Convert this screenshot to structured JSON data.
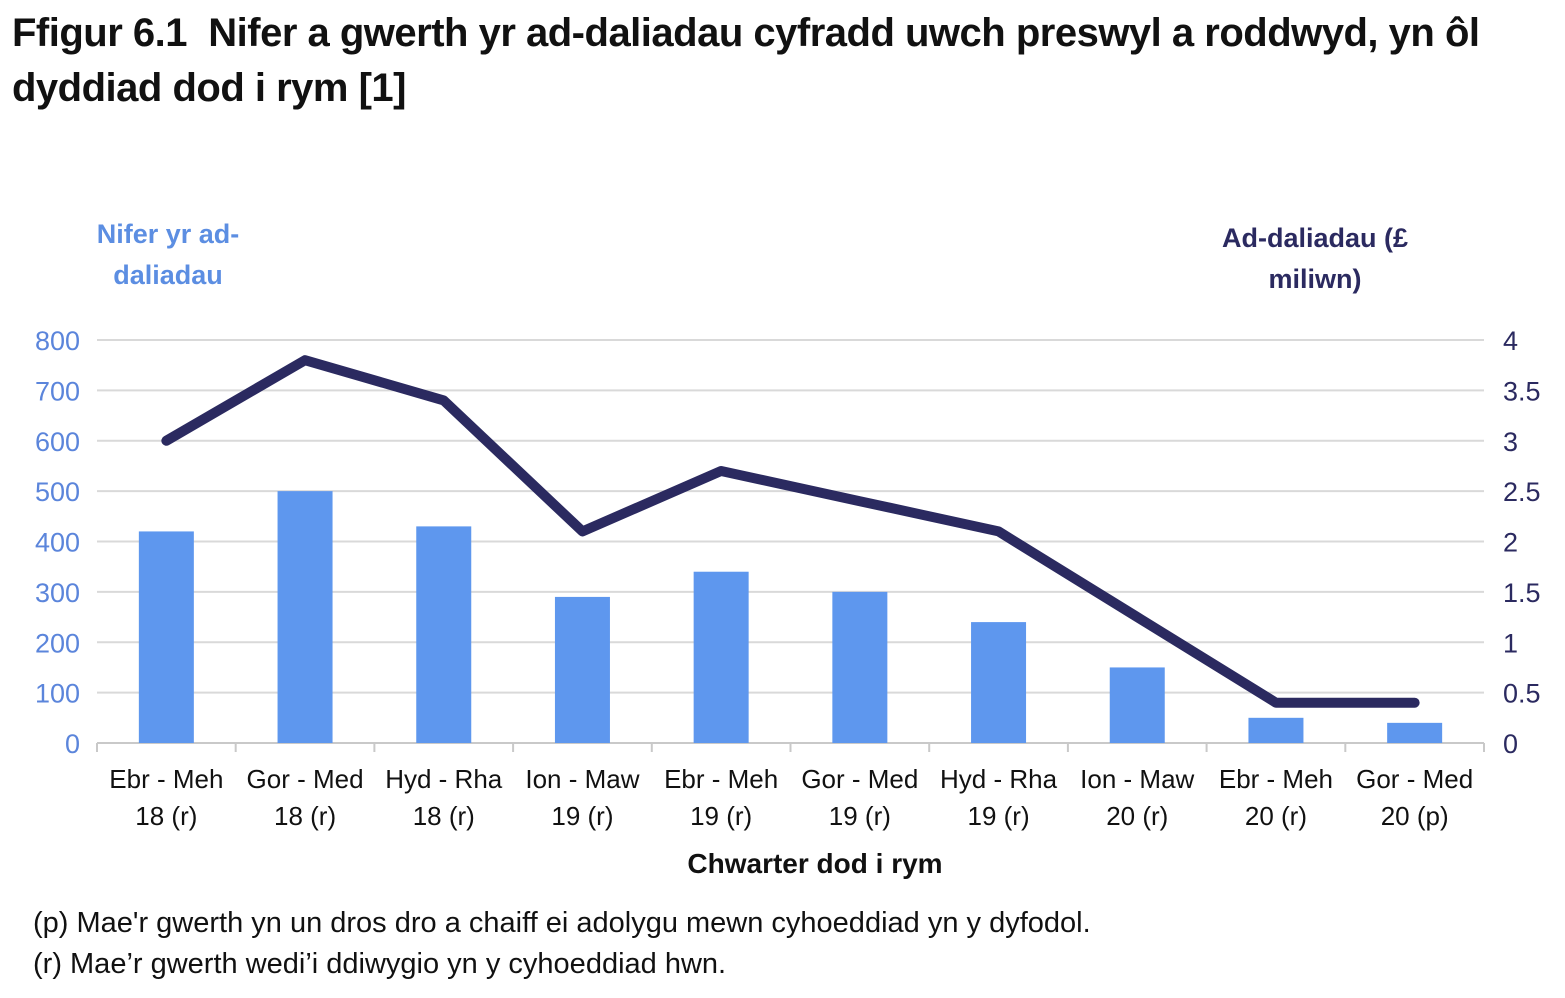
{
  "title": "Ffigur 6.1  Nifer a gwerth yr ad-daliadau cyfradd uwch preswyl a roddwyd, yn ôl dyddiad dod i rym [1]",
  "left_axis": {
    "title": "Nifer yr ad-daliadau",
    "title_line1": "Nifer yr ad-",
    "title_line2": "daliadau",
    "color": "#5C8EE2",
    "tick_color": "#5B85DB"
  },
  "right_axis": {
    "title": "Ad-daliadau (£ miliwn)",
    "title_line1": "Ad-daliadau (£",
    "title_line2": "miliwn)",
    "color": "#2B2A60",
    "tick_color": "#2B2A60"
  },
  "x_axis": {
    "title": "Chwarter dod i rym"
  },
  "footnotes": [
    "(p) Mae'r gwerth yn un dros dro a chaiff ei adolygu mewn cyhoeddiad yn y dyfodol.",
    "(r) Mae’r gwerth wedi’i ddiwygio yn y cyhoeddiad hwn."
  ],
  "chart_data": {
    "type": "bar+line combo",
    "grid": true,
    "xlabel": "Chwarter dod i rym",
    "categories": [
      "Ebr - Meh 18 (r)",
      "Gor - Med 18 (r)",
      "Hyd - Rha 18 (r)",
      "Ion - Maw 19 (r)",
      "Ebr - Meh 19 (r)",
      "Gor - Med 19 (r)",
      "Hyd - Rha 19 (r)",
      "Ion - Maw 20 (r)",
      "Ebr - Meh 20 (r)",
      "Gor - Med 20 (p)"
    ],
    "categories_2line": [
      [
        "Ebr - Meh",
        "18 (r)"
      ],
      [
        "Gor - Med",
        "18 (r)"
      ],
      [
        "Hyd - Rha",
        "18 (r)"
      ],
      [
        "Ion - Maw",
        "19 (r)"
      ],
      [
        "Ebr - Meh",
        "19 (r)"
      ],
      [
        "Gor - Med",
        "19 (r)"
      ],
      [
        "Hyd - Rha",
        "19 (r)"
      ],
      [
        "Ion - Maw",
        "20 (r)"
      ],
      [
        "Ebr - Meh",
        "20 (r)"
      ],
      [
        "Gor - Med",
        "20 (p)"
      ]
    ],
    "series": [
      {
        "name": "Nifer yr ad-daliadau",
        "type": "bar",
        "axis": "left",
        "color": "#5E97EE",
        "values": [
          420,
          500,
          430,
          290,
          340,
          300,
          240,
          150,
          50,
          40
        ]
      },
      {
        "name": "Ad-daliadau (£ miliwn)",
        "type": "line",
        "axis": "right",
        "color": "#2B2A60",
        "values": [
          3.0,
          3.8,
          3.4,
          2.1,
          2.7,
          2.4,
          2.1,
          1.25,
          0.4,
          0.4
        ]
      }
    ],
    "left_ylim": [
      0,
      800
    ],
    "left_ticks": [
      0,
      100,
      200,
      300,
      400,
      500,
      600,
      700,
      800
    ],
    "right_ylim": [
      0,
      4
    ],
    "right_ticks": [
      0,
      0.5,
      1,
      1.5,
      2,
      2.5,
      3,
      3.5,
      4
    ],
    "grid_color": "#D9D9D9",
    "axis_line_color": "#C9C9C9",
    "legend_position": "none (dual axis titles act as legend)"
  }
}
